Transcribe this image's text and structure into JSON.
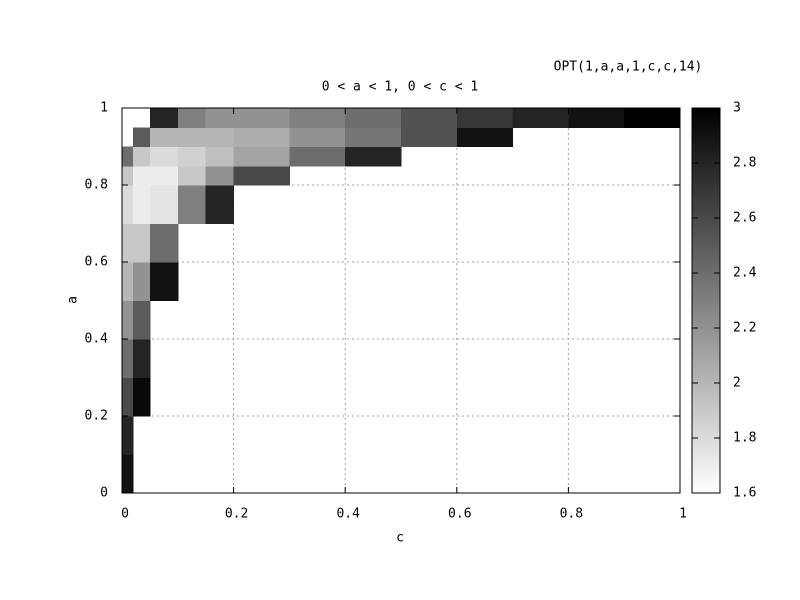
{
  "chart_data": {
    "type": "heatmap",
    "title": "0 < a < 1, 0 < c < 1",
    "annotation": "OPT(1,a,a,1,c,c,14)",
    "xlabel": "c",
    "ylabel": "a",
    "x_edges": [
      0,
      0.02,
      0.05,
      0.1,
      0.15,
      0.2,
      0.3,
      0.4,
      0.5,
      0.6,
      0.7,
      0.8,
      0.9,
      1
    ],
    "y_edges": [
      0,
      0.1,
      0.2,
      0.3,
      0.4,
      0.5,
      0.6,
      0.7,
      0.8,
      0.85,
      0.9,
      0.95,
      1
    ],
    "values": [
      [
        2.9,
        null,
        null,
        null,
        null,
        null,
        null,
        null,
        null,
        null,
        null,
        null,
        null
      ],
      [
        2.8,
        null,
        null,
        null,
        null,
        null,
        null,
        null,
        null,
        null,
        null,
        null,
        null
      ],
      [
        2.6,
        2.95,
        null,
        null,
        null,
        null,
        null,
        null,
        null,
        null,
        null,
        null,
        null
      ],
      [
        2.4,
        2.8,
        null,
        null,
        null,
        null,
        null,
        null,
        null,
        null,
        null,
        null,
        null
      ],
      [
        2.2,
        2.5,
        null,
        null,
        null,
        null,
        null,
        null,
        null,
        null,
        null,
        null,
        null
      ],
      [
        2.0,
        2.2,
        2.9,
        null,
        null,
        null,
        null,
        null,
        null,
        null,
        null,
        null,
        null
      ],
      [
        1.9,
        1.9,
        2.4,
        null,
        null,
        null,
        null,
        null,
        null,
        null,
        null,
        null,
        null
      ],
      [
        1.8,
        1.7,
        1.75,
        2.3,
        2.8,
        null,
        null,
        null,
        null,
        null,
        null,
        null,
        null
      ],
      [
        1.9,
        1.7,
        1.7,
        1.9,
        2.2,
        2.6,
        null,
        null,
        null,
        null,
        null,
        null,
        null
      ],
      [
        2.4,
        1.9,
        1.8,
        1.85,
        1.95,
        2.1,
        2.4,
        2.8,
        null,
        null,
        null,
        null,
        null
      ],
      [
        null,
        2.5,
        2.0,
        2.0,
        2.0,
        2.05,
        2.2,
        2.35,
        2.55,
        2.9,
        null,
        null,
        null
      ],
      [
        null,
        null,
        2.8,
        2.3,
        2.2,
        2.2,
        2.3,
        2.4,
        2.55,
        2.7,
        2.8,
        2.9,
        3.0
      ]
    ],
    "xlim": [
      0,
      1
    ],
    "ylim": [
      0,
      1
    ],
    "xticks": [
      0,
      0.2,
      0.4,
      0.6,
      0.8,
      1
    ],
    "yticks": [
      0,
      0.2,
      0.4,
      0.6,
      0.8,
      1
    ],
    "cblim": [
      1.6,
      3
    ],
    "cbticks": [
      1.6,
      1.8,
      2,
      2.2,
      2.4,
      2.6,
      2.8,
      3
    ],
    "colormap": "gray",
    "grid": true
  }
}
